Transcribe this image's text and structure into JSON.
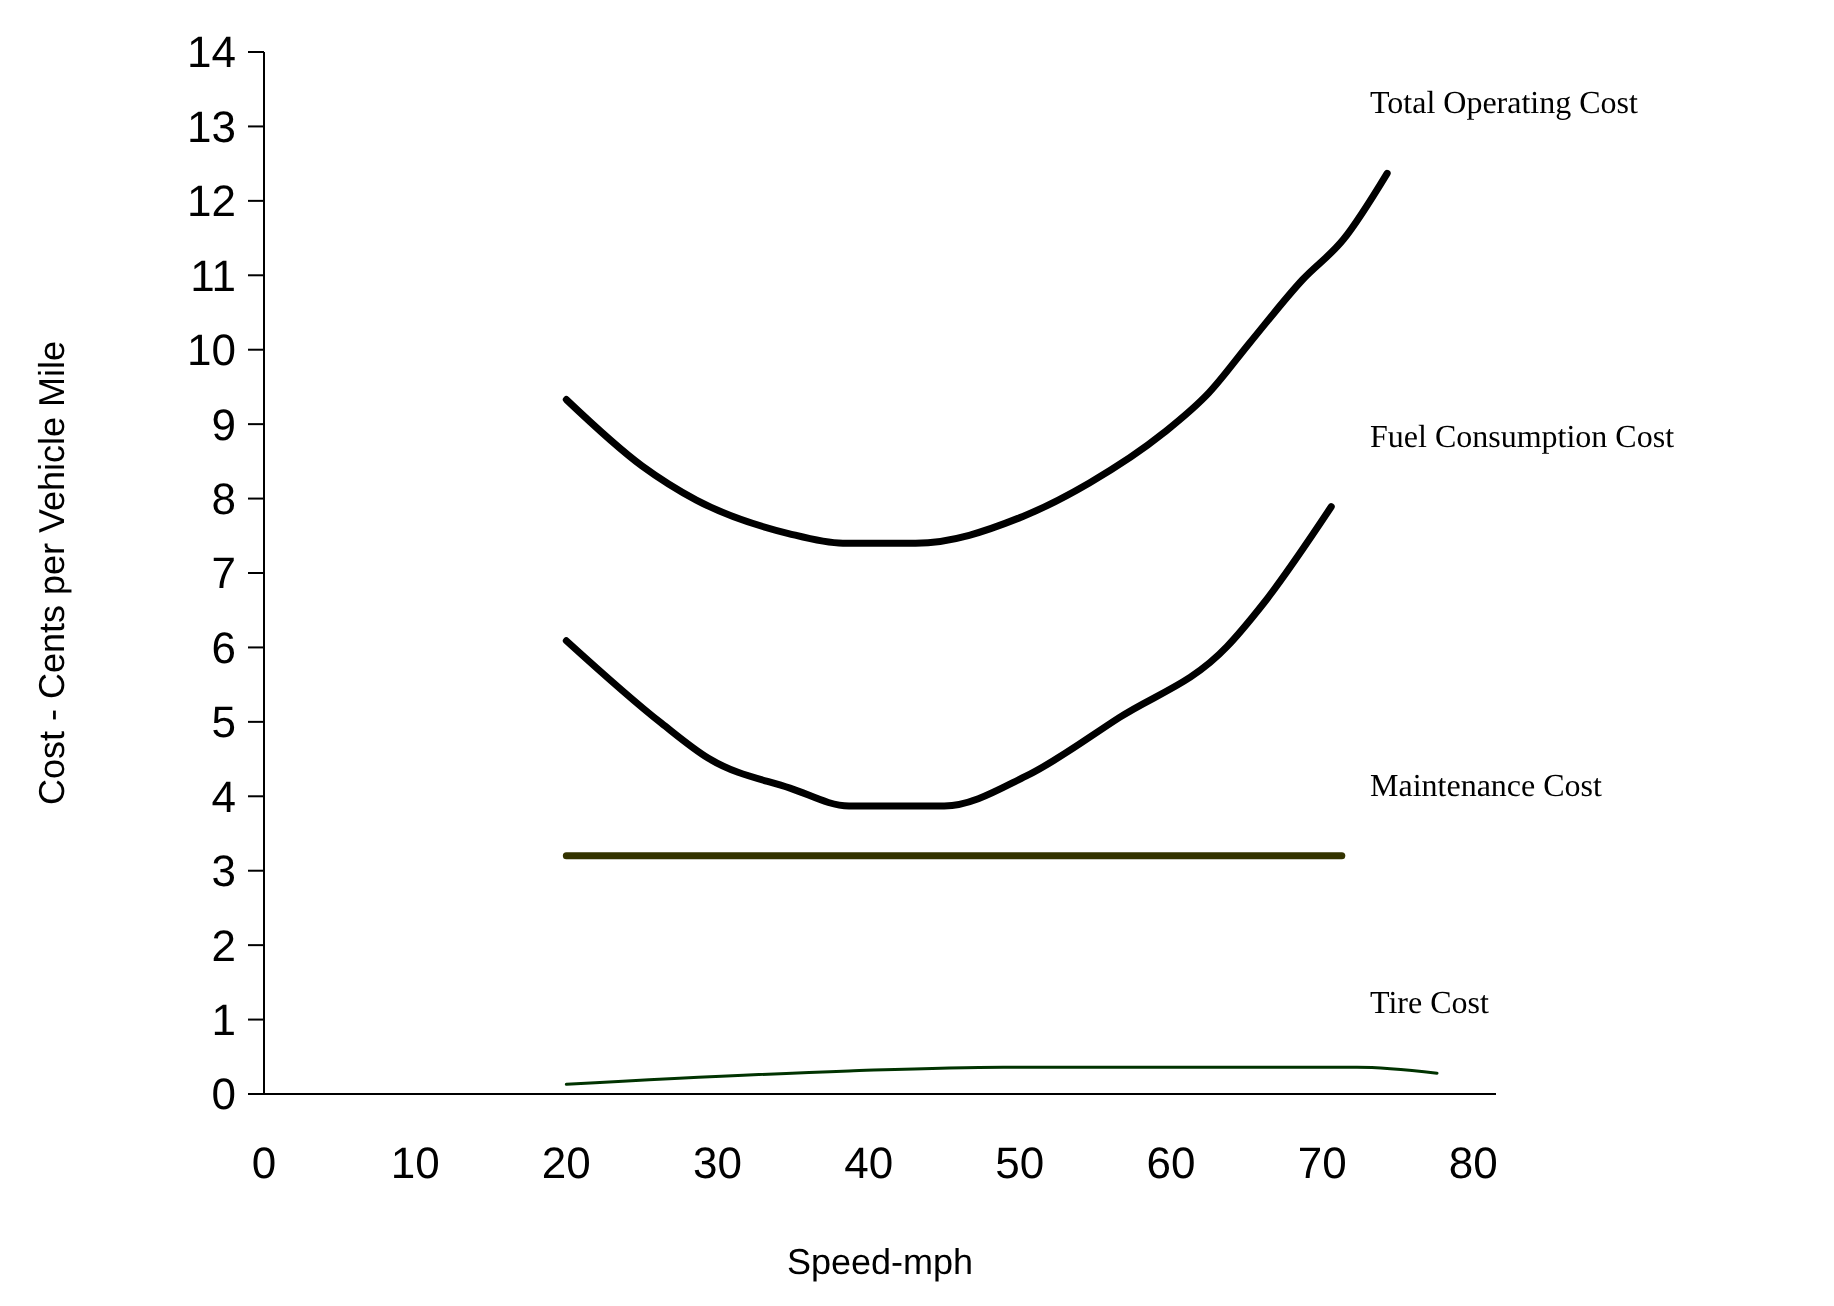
{
  "chart_data": {
    "type": "line",
    "xlabel": "Speed-mph",
    "ylabel": "Cost - Cents per Vehicle Mile",
    "xlim": [
      0,
      81.5
    ],
    "xticks": [
      0,
      10,
      20,
      30,
      40,
      50,
      60,
      70,
      80
    ],
    "ylim": [
      0,
      14
    ],
    "yticks": [
      0,
      1,
      2,
      3,
      4,
      5,
      6,
      7,
      8,
      9,
      10,
      11,
      12,
      13,
      14
    ],
    "grid": false,
    "marker": "none",
    "line_style": "solid",
    "series": [
      {
        "name": "Total Operating Cost",
        "color": "#000000",
        "x": [
          20,
          25,
          28.6,
          34.7,
          38.3,
          43.1,
          50.2,
          54.6,
          59.5,
          62.5,
          65.2,
          68.7,
          71.4,
          74.3
        ],
        "values": [
          9.33,
          8.44,
          7.98,
          7.53,
          7.4,
          7.4,
          7.76,
          8.21,
          8.88,
          9.42,
          10.09,
          10.94,
          11.48,
          12.37
        ]
      },
      {
        "name": "Fuel Consumption Cost",
        "color": "#000000",
        "x": [
          20,
          26.3,
          29.4,
          34.8,
          38.7,
          45,
          50.4,
          56.6,
          63.7,
          66,
          70.6
        ],
        "values": [
          6.09,
          4.98,
          4.51,
          4.11,
          3.87,
          3.87,
          4.27,
          5.06,
          6.01,
          6.56,
          7.89
        ]
      },
      {
        "name": "Maintenance Cost",
        "color": "#333300",
        "x": [
          20,
          71.3
        ],
        "values": [
          3.2,
          3.2
        ]
      },
      {
        "name": "Tire Cost",
        "color": "#003300",
        "x": [
          20,
          38.7,
          48.9,
          72.3,
          77.6
        ],
        "values": [
          0.13,
          0.31,
          0.36,
          0.36,
          0.28
        ]
      }
    ]
  }
}
